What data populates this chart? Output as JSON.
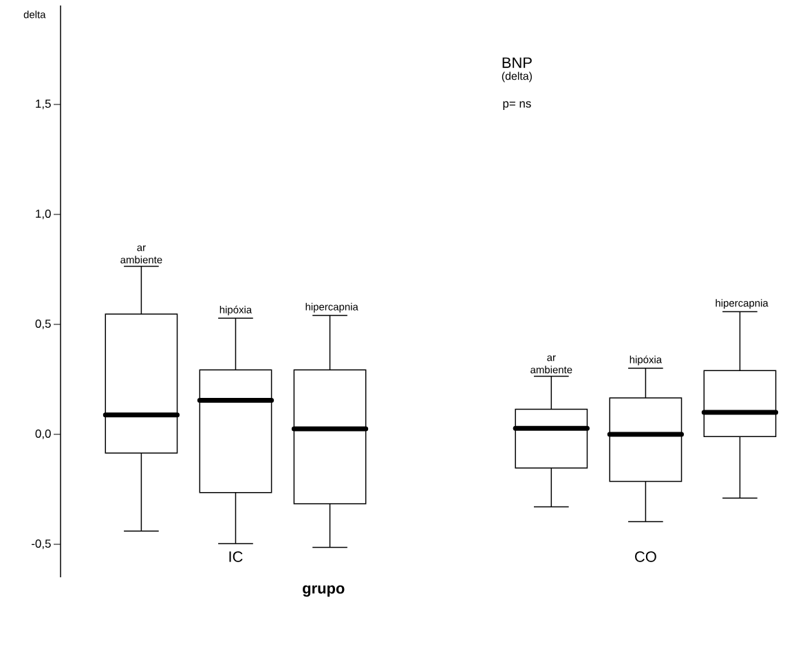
{
  "chart_data": {
    "type": "box",
    "title": "BNP",
    "subtitle": "(delta)",
    "ylabel": "delta",
    "xlabel": "grupo",
    "annotations": [
      "p= ns",
      "ar ambiente",
      "hipóxia",
      "hipercapnia",
      "ar ambiente",
      "hipóxia",
      "hipercapnia"
    ],
    "categories": [
      "IC",
      "CO"
    ],
    "ylim": [
      -0.65,
      1.95
    ],
    "yticks": [
      {
        "value": -0.5,
        "label": "-0,5"
      },
      {
        "value": 0,
        "label": "0,0"
      },
      {
        "value": 0.5,
        "label": "0,5"
      },
      {
        "value": 1.0,
        "label": "1,0"
      },
      {
        "value": 1.5,
        "label": "1,5"
      }
    ],
    "series": [
      {
        "color": "#000000",
        "boxes": [
          {
            "low": -0.44,
            "q1": -0.085,
            "median": 0.088,
            "q3": 0.547,
            "high": 0.764
          },
          {
            "low": -0.33,
            "q1": -0.153,
            "median": 0.027,
            "q3": 0.114,
            "high": 0.264
          }
        ]
      },
      {
        "color": "#000000",
        "boxes": [
          {
            "low": -0.497,
            "q1": -0.265,
            "median": 0.155,
            "q3": 0.293,
            "high": 0.528
          },
          {
            "low": -0.397,
            "q1": -0.214,
            "median": 0.0,
            "q3": 0.166,
            "high": 0.301
          }
        ]
      },
      {
        "color": "#000000",
        "boxes": [
          {
            "low": -0.514,
            "q1": -0.316,
            "median": 0.025,
            "q3": 0.293,
            "high": 0.541
          },
          {
            "low": -0.29,
            "q1": -0.01,
            "median": 0.1,
            "q3": 0.29,
            "high": 0.558
          }
        ]
      }
    ]
  }
}
